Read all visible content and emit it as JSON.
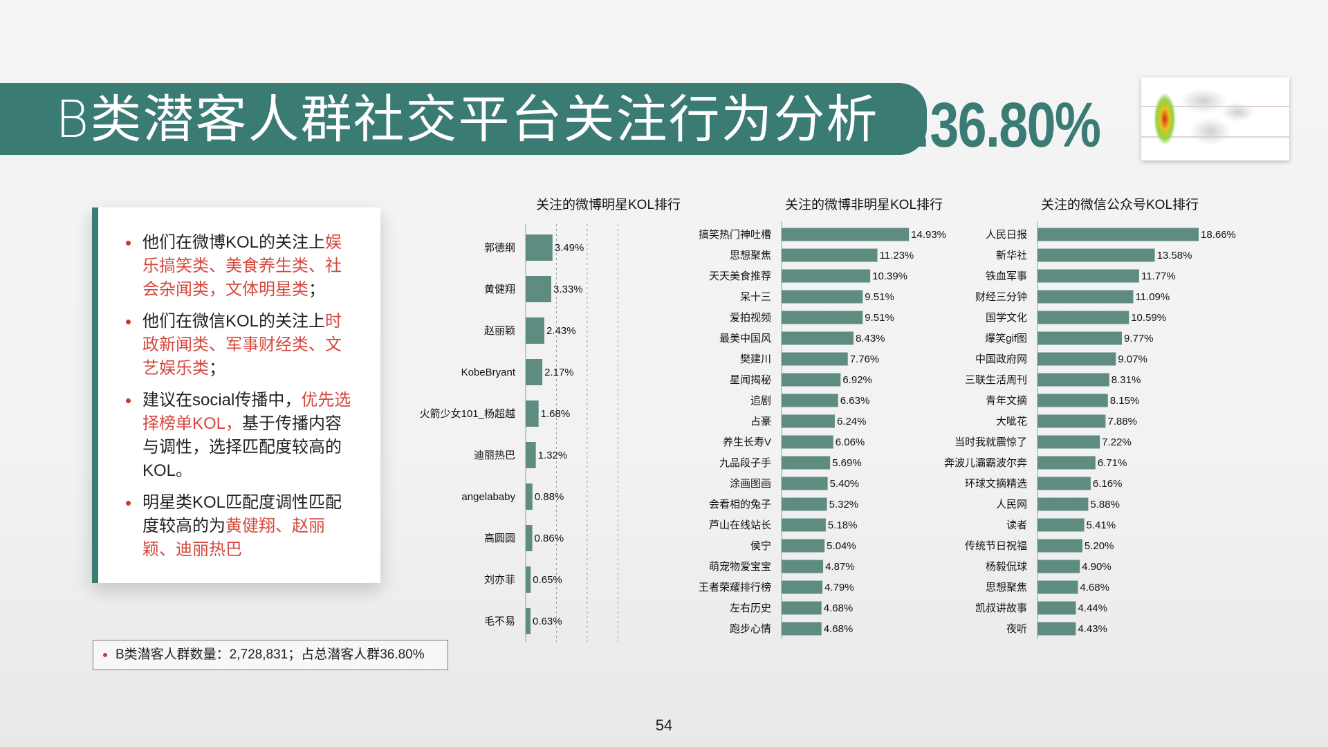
{
  "header": {
    "title": "B类潜客人群社交平台关注行为分析",
    "ratio": "B:36.80%"
  },
  "panel": {
    "bullets": [
      {
        "plain": "他们在微博KOL的关注上",
        "highlight": "娱乐搞笑类、美食养生类、社会杂闻类，文体明星类",
        "tail": "；"
      },
      {
        "plain": "他们在微信KOL的关注上",
        "highlight": "时政新闻类、军事财经类、文艺娱乐类",
        "tail": "；"
      },
      {
        "plain": "建议在social传播中，",
        "highlight": "优先选择榜单KOL，",
        "tail": "基于传播内容与调性，选择匹配度较高的KOL。"
      },
      {
        "plain": "明星类KOL匹配度调性匹配度较高的为",
        "highlight": "黄健翔、赵丽颖、迪丽热巴",
        "tail": ""
      }
    ]
  },
  "note": "B类潜客人群数量：2,728,831；占总潜客人群36.80%",
  "page_number": "54",
  "colors": {
    "accent": "#3a7b74",
    "bar": "#5f8c81",
    "highlight": "#d4483d"
  },
  "chart_data": [
    {
      "type": "bar",
      "orientation": "horizontal",
      "title": "关注的微博明星KOL排行",
      "categories": [
        "郭德纲",
        "黄健翔",
        "赵丽颖",
        "KobeBryant",
        "火箭少女101_杨超越",
        "迪丽热巴",
        "angelababy",
        "高圆圆",
        "刘亦菲",
        "毛不易"
      ],
      "values": [
        3.49,
        3.33,
        2.43,
        2.17,
        1.68,
        1.32,
        0.88,
        0.86,
        0.65,
        0.63
      ],
      "labels": [
        "3.49%",
        "3.33%",
        "2.43%",
        "2.17%",
        "1.68%",
        "1.32%",
        "0.88%",
        "0.86%",
        "0.65%",
        "0.63%"
      ],
      "xlim": [
        0,
        18
      ],
      "grid": true
    },
    {
      "type": "bar",
      "orientation": "horizontal",
      "title": "关注的微博非明星KOL排行",
      "categories": [
        "搞笑热门神吐槽",
        "思想聚焦",
        "天天美食推荐",
        "呆十三",
        "爱拍视频",
        "最美中国风",
        "樊建川",
        "星闻揭秘",
        "追剧",
        "占豪",
        "养生长寿V",
        "九品段子手",
        "涂画图画",
        "会看相的兔子",
        "芦山在线站长",
        "侯宁",
        "萌宠物爱宝宝",
        "王者荣耀排行榜",
        "左右历史",
        "跑步心情"
      ],
      "values": [
        14.93,
        11.23,
        10.39,
        9.51,
        9.51,
        8.43,
        7.76,
        6.92,
        6.63,
        6.24,
        6.06,
        5.69,
        5.4,
        5.32,
        5.18,
        5.04,
        4.87,
        4.79,
        4.68,
        4.68
      ],
      "labels": [
        "14.93%",
        "11.23%",
        "10.39%",
        "9.51%",
        "9.51%",
        "8.43%",
        "7.76%",
        "6.92%",
        "6.63%",
        "6.24%",
        "6.06%",
        "5.69%",
        "5.40%",
        "5.32%",
        "5.18%",
        "5.04%",
        "4.87%",
        "4.79%",
        "4.68%",
        "4.68%"
      ],
      "xlim": [
        0,
        15
      ],
      "grid": false
    },
    {
      "type": "bar",
      "orientation": "horizontal",
      "title": "关注的微信公众号KOL排行",
      "categories": [
        "人民日报",
        "新华社",
        "铁血军事",
        "财经三分钟",
        "国学文化",
        "爆笑gif图",
        "中国政府网",
        "三联生活周刊",
        "青年文摘",
        "大呲花",
        "当时我就震惊了",
        "奔波儿灞霸波尔奔",
        "环球文摘精选",
        "人民网",
        "读者",
        "传统节日祝福",
        "杨毅侃球",
        "思想聚焦",
        "凯叔讲故事",
        "夜听"
      ],
      "values": [
        18.66,
        13.58,
        11.77,
        11.09,
        10.59,
        9.77,
        9.07,
        8.31,
        8.15,
        7.88,
        7.22,
        6.71,
        6.16,
        5.88,
        5.41,
        5.2,
        4.9,
        4.68,
        4.44,
        4.43
      ],
      "labels": [
        "18.66%",
        "13.58%",
        "11.77%",
        "11.09%",
        "10.59%",
        "9.77%",
        "9.07%",
        "8.31%",
        "8.15%",
        "7.88%",
        "7.22%",
        "6.71%",
        "6.16%",
        "5.88%",
        "5.41%",
        "5.20%",
        "4.90%",
        "4.68%",
        "4.44%",
        "4.43%"
      ],
      "xlim": [
        0,
        18.66
      ],
      "grid": false
    }
  ]
}
